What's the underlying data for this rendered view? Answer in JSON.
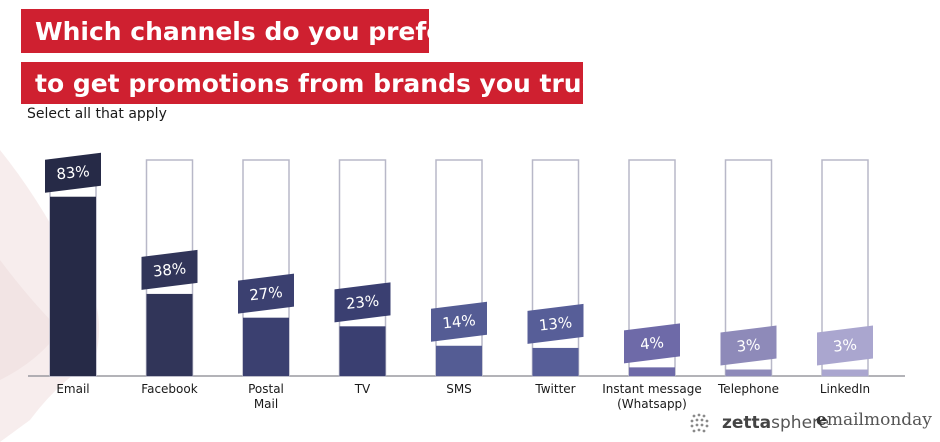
{
  "header": {
    "title_line1": "Which channels do you prefer",
    "title_line2": "to get promotions from brands you trust ?",
    "subtitle": "Select all that apply"
  },
  "colors": {
    "title_bg": "#cf2030",
    "bar_outline": "#b8b8c8",
    "axis": "#9a9aa0"
  },
  "chart_data": {
    "type": "bar",
    "title": "Which channels do you prefer to get promotions from brands you trust ?",
    "subtitle": "Select all that apply",
    "categories": [
      "Email",
      "Facebook",
      "Postal Mail",
      "TV",
      "SMS",
      "Twitter",
      "Instant message (Whatsapp)",
      "Telephone",
      "LinkedIn"
    ],
    "category_lines": [
      [
        "Email"
      ],
      [
        "Facebook"
      ],
      [
        "Postal",
        "Mail"
      ],
      [
        "TV"
      ],
      [
        "SMS"
      ],
      [
        "Twitter"
      ],
      [
        "Instant message",
        "(Whatsapp)"
      ],
      [
        "Telephone"
      ],
      [
        "LinkedIn"
      ]
    ],
    "values": [
      83,
      38,
      27,
      23,
      14,
      13,
      4,
      3,
      3
    ],
    "data_labels": [
      "83%",
      "38%",
      "27%",
      "23%",
      "14%",
      "13%",
      "4%",
      "3%",
      "3%"
    ],
    "unit": "%",
    "ylim": [
      0,
      100
    ],
    "bar_colors": [
      "#262a47",
      "#313559",
      "#3b4070",
      "#3a3f71",
      "#545c94",
      "#575e98",
      "#6e6aa8",
      "#8e8ab9",
      "#aaa6cf"
    ],
    "grid": false,
    "legend": "none"
  },
  "logos": {
    "zettasphere_bold": "zetta",
    "zettasphere_rest": "sphere",
    "emailmonday_first": "e",
    "emailmonday_rest": "mailmonday"
  }
}
